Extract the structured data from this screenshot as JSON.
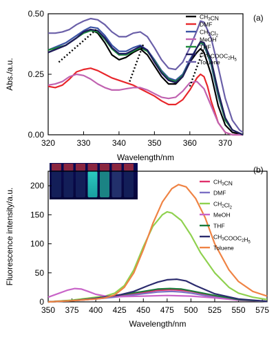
{
  "chart_data": [
    {
      "panel_label": "(a)",
      "type": "line",
      "xlabel": "Wavelength/nm",
      "ylabel": "Abs./a.u.",
      "xlim": [
        320,
        375
      ],
      "ylim": [
        0,
        0.5
      ],
      "xticks": [
        320,
        330,
        340,
        350,
        360,
        370
      ],
      "yticks": [
        0.0,
        0.25,
        0.5
      ],
      "ytick_labels": [
        "0.00",
        "0.25",
        "0.50"
      ],
      "grid": false,
      "legend_position": "top-right",
      "series": [
        {
          "name": "CH3CN",
          "legend_sub": [
            [
              "CH",
              ""
            ],
            [
              "3",
              "sub"
            ],
            [
              "CN",
              ""
            ]
          ],
          "color": "#000000",
          "x": [
            320,
            325,
            328,
            330,
            332,
            334,
            336,
            338,
            340,
            342,
            344,
            346,
            348,
            350,
            352,
            354,
            356,
            358,
            360,
            362,
            363,
            364,
            366,
            368,
            370,
            372,
            375
          ],
          "y": [
            0.34,
            0.37,
            0.4,
            0.425,
            0.435,
            0.42,
            0.38,
            0.33,
            0.31,
            0.32,
            0.34,
            0.355,
            0.33,
            0.285,
            0.24,
            0.21,
            0.21,
            0.24,
            0.3,
            0.34,
            0.355,
            0.34,
            0.25,
            0.12,
            0.04,
            0.01,
            0.0
          ]
        },
        {
          "name": "DMF",
          "legend_sub": [
            [
              "DMF",
              ""
            ]
          ],
          "color": "#e8262b",
          "x": [
            320,
            322,
            324,
            326,
            328,
            330,
            332,
            334,
            336,
            338,
            340,
            342,
            344,
            346,
            348,
            350,
            352,
            354,
            356,
            358,
            360,
            362,
            363,
            364,
            365,
            366,
            368,
            370,
            372,
            375
          ],
          "y": [
            0.2,
            0.195,
            0.205,
            0.23,
            0.26,
            0.27,
            0.275,
            0.265,
            0.25,
            0.235,
            0.225,
            0.215,
            0.205,
            0.19,
            0.175,
            0.16,
            0.14,
            0.125,
            0.125,
            0.145,
            0.185,
            0.235,
            0.25,
            0.24,
            0.2,
            0.14,
            0.05,
            0.01,
            0.0,
            0.0
          ]
        },
        {
          "name": "CH2Cl2",
          "legend_sub": [
            [
              "CH",
              ""
            ],
            [
              "2",
              "sub"
            ],
            [
              "Cl",
              ""
            ],
            [
              "2",
              "sub"
            ]
          ],
          "color": "#3a53a4",
          "x": [
            320,
            325,
            328,
            330,
            332,
            334,
            336,
            338,
            340,
            342,
            344,
            346,
            348,
            350,
            352,
            354,
            356,
            358,
            360,
            362,
            363,
            364,
            366,
            368,
            370,
            372,
            375
          ],
          "y": [
            0.35,
            0.38,
            0.41,
            0.43,
            0.445,
            0.44,
            0.41,
            0.37,
            0.345,
            0.345,
            0.36,
            0.37,
            0.35,
            0.31,
            0.265,
            0.235,
            0.225,
            0.25,
            0.31,
            0.36,
            0.38,
            0.37,
            0.29,
            0.16,
            0.06,
            0.02,
            0.0
          ]
        },
        {
          "name": "MeOH",
          "legend_sub": [
            [
              "MeOH",
              ""
            ]
          ],
          "color": "#c062b0",
          "x": [
            320,
            322,
            324,
            326,
            328,
            330,
            332,
            334,
            336,
            338,
            340,
            342,
            344,
            346,
            348,
            350,
            352,
            354,
            356,
            358,
            360,
            362,
            364,
            366,
            368,
            370,
            372,
            375
          ],
          "y": [
            0.205,
            0.21,
            0.22,
            0.24,
            0.25,
            0.245,
            0.23,
            0.21,
            0.195,
            0.185,
            0.185,
            0.19,
            0.195,
            0.195,
            0.185,
            0.17,
            0.155,
            0.15,
            0.155,
            0.18,
            0.215,
            0.22,
            0.19,
            0.12,
            0.05,
            0.01,
            0.0,
            0.0
          ]
        },
        {
          "name": "THF",
          "legend_sub": [
            [
              "THF",
              ""
            ]
          ],
          "color": "#1b8a3a",
          "x": [
            320,
            325,
            328,
            330,
            332,
            334,
            336,
            338,
            340,
            342,
            344,
            346,
            348,
            350,
            352,
            354,
            356,
            358,
            360,
            362,
            363,
            364,
            366,
            368,
            370,
            372,
            375
          ],
          "y": [
            0.35,
            0.37,
            0.4,
            0.42,
            0.43,
            0.425,
            0.395,
            0.355,
            0.33,
            0.33,
            0.345,
            0.36,
            0.345,
            0.305,
            0.26,
            0.23,
            0.22,
            0.245,
            0.3,
            0.36,
            0.38,
            0.375,
            0.3,
            0.17,
            0.06,
            0.02,
            0.0
          ]
        },
        {
          "name": "CH3COOC2H5",
          "legend_sub": [
            [
              "CH",
              ""
            ],
            [
              "3",
              "sub"
            ],
            [
              "COOC",
              ""
            ],
            [
              "2",
              "sub"
            ],
            [
              "H",
              ""
            ],
            [
              "5",
              "sub"
            ]
          ],
          "color": "#1f1a5c",
          "x": [
            320,
            325,
            328,
            330,
            332,
            334,
            336,
            338,
            340,
            342,
            344,
            346,
            348,
            350,
            352,
            354,
            356,
            358,
            360,
            362,
            363,
            364,
            366,
            368,
            370,
            372,
            375
          ],
          "y": [
            0.34,
            0.37,
            0.4,
            0.425,
            0.435,
            0.43,
            0.4,
            0.36,
            0.335,
            0.335,
            0.35,
            0.365,
            0.35,
            0.3,
            0.255,
            0.225,
            0.215,
            0.24,
            0.3,
            0.36,
            0.385,
            0.38,
            0.31,
            0.18,
            0.07,
            0.02,
            0.0
          ]
        },
        {
          "name": "Toluene",
          "legend_sub": [
            [
              "Toluene",
              ""
            ]
          ],
          "color": "#6a5fa8",
          "x": [
            320,
            322,
            324,
            326,
            328,
            330,
            332,
            334,
            336,
            338,
            340,
            342,
            344,
            346,
            348,
            350,
            352,
            354,
            356,
            358,
            360,
            362,
            363,
            364,
            366,
            368,
            370,
            372,
            374,
            375
          ],
          "y": [
            0.42,
            0.42,
            0.425,
            0.435,
            0.455,
            0.47,
            0.48,
            0.475,
            0.455,
            0.425,
            0.405,
            0.405,
            0.42,
            0.425,
            0.405,
            0.36,
            0.31,
            0.275,
            0.27,
            0.3,
            0.36,
            0.43,
            0.47,
            0.465,
            0.4,
            0.28,
            0.15,
            0.06,
            0.02,
            0.01
          ]
        }
      ],
      "dotted_trend_lines": [
        {
          "x": [
            323,
            334
          ],
          "y": [
            0.3,
            0.44
          ]
        },
        {
          "x": [
            343,
            347
          ],
          "y": [
            0.22,
            0.38
          ]
        },
        {
          "x": [
            360,
            364
          ],
          "y": [
            0.2,
            0.36
          ]
        }
      ]
    },
    {
      "panel_label": "(b)",
      "type": "line",
      "xlabel": "Wavelength/nm",
      "ylabel": "Fluorescence intensity/a.u.",
      "xlim": [
        350,
        580
      ],
      "ylim": [
        0,
        225
      ],
      "xticks": [
        350,
        375,
        400,
        425,
        450,
        475,
        500,
        525,
        550,
        575
      ],
      "yticks": [
        0,
        50,
        100,
        150,
        200
      ],
      "grid": false,
      "legend_position": "right",
      "inset": "photo of seven vials under UV light",
      "series": [
        {
          "name": "CH3CN",
          "legend_sub": [
            [
              "CH",
              ""
            ],
            [
              "3",
              "sub"
            ],
            [
              "CN",
              ""
            ]
          ],
          "color": "#e0306b",
          "x": [
            350,
            375,
            400,
            425,
            450,
            465,
            480,
            490,
            500,
            525,
            550,
            580
          ],
          "y": [
            0,
            2,
            5,
            10,
            16,
            20,
            21,
            20,
            18,
            10,
            4,
            1
          ]
        },
        {
          "name": "DMF",
          "legend_sub": [
            [
              "DMF",
              ""
            ]
          ],
          "color": "#7b6fc4",
          "x": [
            350,
            375,
            400,
            425,
            450,
            465,
            480,
            490,
            500,
            525,
            550,
            580
          ],
          "y": [
            0,
            2,
            5,
            9,
            14,
            17,
            18,
            17,
            15,
            8,
            3,
            1
          ]
        },
        {
          "name": "CH2Cl2",
          "legend_sub": [
            [
              "CH",
              ""
            ],
            [
              "2",
              "sub"
            ],
            [
              "Cl",
              ""
            ],
            [
              "2",
              "sub"
            ]
          ],
          "color": "#8fd14f",
          "x": [
            350,
            375,
            400,
            410,
            420,
            430,
            440,
            450,
            460,
            470,
            475,
            480,
            490,
            500,
            510,
            525,
            540,
            550,
            565,
            580
          ],
          "y": [
            0,
            3,
            8,
            10,
            15,
            28,
            55,
            95,
            130,
            150,
            155,
            153,
            140,
            115,
            85,
            50,
            25,
            15,
            8,
            4
          ]
        },
        {
          "name": "MeOH",
          "legend_sub": [
            [
              "MeOH",
              ""
            ]
          ],
          "color": "#c864c8",
          "x": [
            350,
            360,
            370,
            378,
            385,
            392,
            400,
            410,
            425,
            450,
            475,
            500,
            525,
            550,
            580
          ],
          "y": [
            8,
            14,
            20,
            23,
            22,
            18,
            13,
            10,
            9,
            10,
            11,
            10,
            7,
            3,
            1
          ]
        },
        {
          "name": "THF",
          "legend_sub": [
            [
              "THF",
              ""
            ]
          ],
          "color": "#1b7a3a",
          "x": [
            350,
            375,
            400,
            425,
            450,
            465,
            478,
            490,
            500,
            525,
            550,
            580
          ],
          "y": [
            0,
            2,
            6,
            12,
            18,
            22,
            23,
            22,
            19,
            11,
            4,
            1
          ]
        },
        {
          "name": "CH3COOC2H5",
          "legend_sub": [
            [
              "CH",
              ""
            ],
            [
              "3",
              "sub"
            ],
            [
              "COOC",
              ""
            ],
            [
              "2",
              "sub"
            ],
            [
              "H",
              ""
            ],
            [
              "5",
              "sub"
            ]
          ],
          "color": "#2b2b6e",
          "x": [
            350,
            375,
            400,
            425,
            440,
            455,
            465,
            475,
            485,
            495,
            505,
            525,
            550,
            580
          ],
          "y": [
            0,
            2,
            6,
            12,
            18,
            28,
            34,
            38,
            39,
            36,
            28,
            14,
            5,
            1
          ]
        },
        {
          "name": "Toluene",
          "legend_sub": [
            [
              "Toluene",
              ""
            ]
          ],
          "color": "#ef8344",
          "x": [
            350,
            375,
            400,
            410,
            420,
            430,
            440,
            450,
            460,
            470,
            480,
            487,
            495,
            505,
            515,
            525,
            540,
            550,
            565,
            580
          ],
          "y": [
            0,
            2,
            5,
            7,
            12,
            25,
            50,
            90,
            135,
            172,
            195,
            202,
            198,
            178,
            145,
            100,
            55,
            35,
            18,
            10
          ]
        }
      ]
    }
  ]
}
